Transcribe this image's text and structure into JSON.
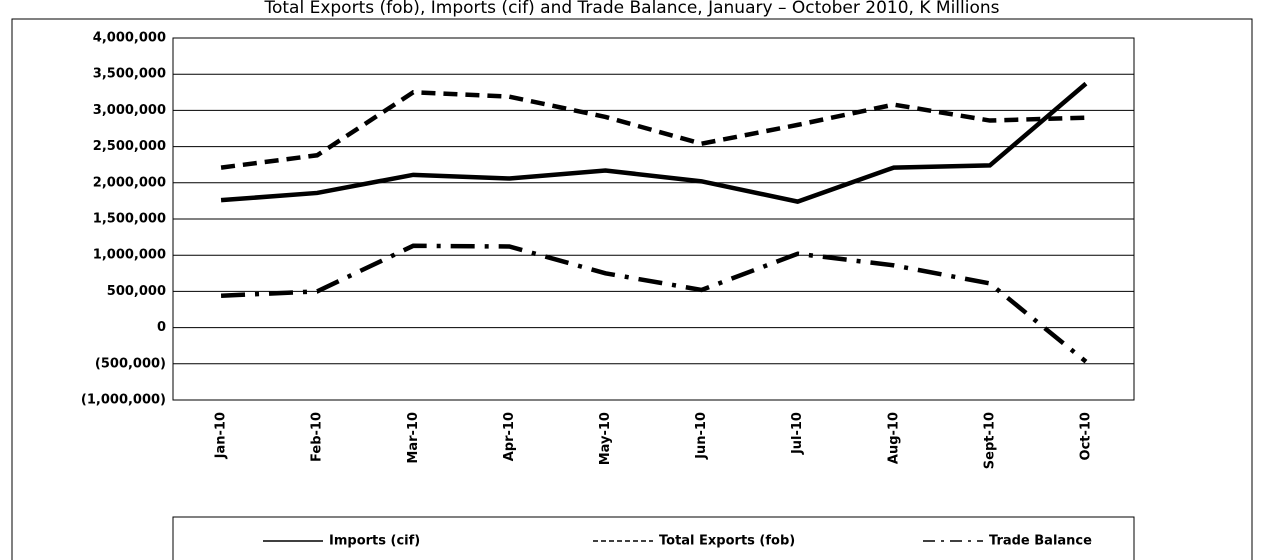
{
  "chart_data": {
    "type": "line",
    "title": "Total Exports (fob), Imports (cif) and Trade Balance, January – October 2010, K Millions",
    "categories": [
      "Jan-10",
      "Feb-10",
      "Mar-10",
      "Apr-10",
      "May-10",
      "Jun-10",
      "Jul-10",
      "Aug-10",
      "Sept-10",
      "Oct-10"
    ],
    "series": [
      {
        "name": "Imports (cif)",
        "color": "#000000",
        "dash": "solid",
        "values": [
          1760000,
          1860000,
          2110000,
          2060000,
          2170000,
          2020000,
          1740000,
          2210000,
          2240000,
          3370000
        ]
      },
      {
        "name": "Total Exports (fob)",
        "color": "#000000",
        "dash": "dashed",
        "values": [
          2210000,
          2380000,
          3250000,
          3190000,
          2910000,
          2540000,
          2800000,
          3080000,
          2860000,
          2900000
        ]
      },
      {
        "name": "Trade Balance",
        "color": "#000000",
        "dash": "dashdot",
        "values": [
          440000,
          500000,
          1130000,
          1120000,
          750000,
          520000,
          1020000,
          860000,
          610000,
          -470000
        ]
      }
    ],
    "ylim": [
      -1000000,
      4000000
    ],
    "yticks": [
      {
        "value": -1000000,
        "label": "(1,000,000)"
      },
      {
        "value": -500000,
        "label": "(500,000)"
      },
      0,
      {
        "value": 500000,
        "label": "500,000"
      },
      {
        "value": 1000000,
        "label": "1,000,000"
      },
      {
        "value": 1500000,
        "label": "1,500,000"
      },
      {
        "value": 2000000,
        "label": "2,000,000"
      },
      {
        "value": 2500000,
        "label": "2,500,000"
      },
      {
        "value": 3000000,
        "label": "3,000,000"
      },
      {
        "value": 3500000,
        "label": "3,500,000"
      },
      {
        "value": 4000000,
        "label": "4,000,000"
      }
    ],
    "grid": true,
    "legend": "bottom"
  }
}
